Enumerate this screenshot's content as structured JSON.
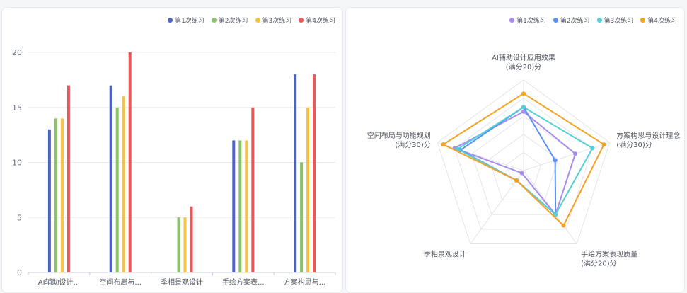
{
  "chart_data": [
    {
      "type": "bar",
      "categories": [
        "AI辅助设计...",
        "空间布局与...",
        "季相景观设计",
        "手绘方案表...",
        "方案构思与..."
      ],
      "series": [
        {
          "name": "第1次练习",
          "color": "#4e63c4",
          "values": [
            13,
            17,
            0,
            12,
            18
          ]
        },
        {
          "name": "第2次练习",
          "color": "#8ac467",
          "values": [
            14,
            15,
            5,
            12,
            10
          ]
        },
        {
          "name": "第3次练习",
          "color": "#f5c242",
          "values": [
            14,
            16,
            5,
            12,
            15
          ]
        },
        {
          "name": "第4次练习",
          "color": "#e8595a",
          "values": [
            17,
            20,
            6,
            15,
            18
          ]
        }
      ],
      "yticks": [
        "0",
        "5",
        "10",
        "15",
        "20"
      ],
      "ylim": [
        0,
        20
      ],
      "grid": true,
      "legend": "top-right"
    },
    {
      "type": "radar",
      "indicators": [
        {
          "name": "AI辅助设计应用效果",
          "sub": "(满分20)分",
          "max": 20
        },
        {
          "name": "方案构思与设计理念",
          "sub": "(满分30)分",
          "max": 30
        },
        {
          "name": "手绘方案表现质量",
          "sub": "(满分20)分",
          "max": 20
        },
        {
          "name": "季相景观设计",
          "sub": "",
          "max": 30
        },
        {
          "name": "空间布局与功能规划",
          "sub": "(满分30)分",
          "max": 30
        }
      ],
      "series": [
        {
          "name": "第1次练习",
          "color": "#a88df0",
          "values": [
            13,
            18,
            12,
            1,
            24
          ]
        },
        {
          "name": "第2次练习",
          "color": "#5b8ff5",
          "values": [
            14,
            11,
            12,
            4,
            22
          ]
        },
        {
          "name": "第3次练习",
          "color": "#52d0d5",
          "values": [
            14,
            24,
            12,
            4,
            23
          ]
        },
        {
          "name": "第4次练习",
          "color": "#f5a122",
          "values": [
            17,
            28,
            15,
            4,
            28
          ]
        }
      ],
      "grid": true,
      "legend": "top-right"
    }
  ]
}
